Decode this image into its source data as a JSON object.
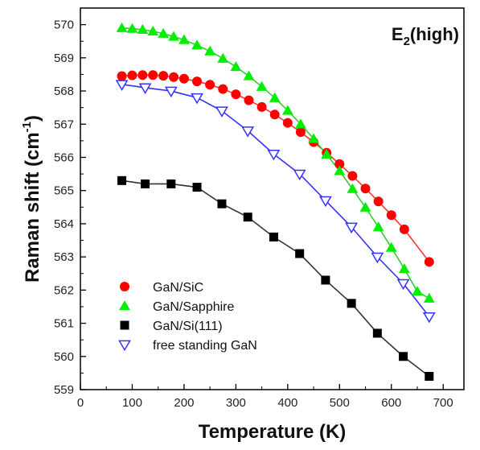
{
  "chart_data": {
    "type": "scatter",
    "xlabel": "Temperature (K)",
    "ylabel_main": "Raman shift (cm",
    "ylabel_sup": "-1",
    "ylabel_close": ")",
    "xlim": [
      0,
      740
    ],
    "ylim": [
      559,
      570.5
    ],
    "xticks": [
      0,
      100,
      200,
      300,
      400,
      500,
      600,
      700
    ],
    "yticks": [
      559,
      560,
      561,
      562,
      563,
      564,
      565,
      566,
      567,
      568,
      569,
      570
    ],
    "annotation_main": "E",
    "annotation_sub": "2",
    "annotation_rest": "(high)",
    "legend_position": "lower-left",
    "grid": false,
    "series": [
      {
        "name": "GaN/SiC",
        "marker": "circle",
        "color": "#ff0000",
        "line_color": "#ff3333",
        "x": [
          80,
          100,
          120,
          140,
          160,
          180,
          200,
          225,
          250,
          275,
          300,
          325,
          350,
          375,
          400,
          425,
          450,
          475,
          500,
          525,
          550,
          575,
          600,
          625,
          673
        ],
        "y": [
          568.45,
          568.47,
          568.48,
          568.48,
          568.46,
          568.42,
          568.37,
          568.29,
          568.19,
          568.06,
          567.9,
          567.72,
          567.52,
          567.29,
          567.04,
          566.76,
          566.46,
          566.14,
          565.8,
          565.44,
          565.06,
          564.67,
          564.26,
          563.83,
          562.85
        ]
      },
      {
        "name": "GaN/Sapphire",
        "marker": "triangle-up",
        "color": "#00ee00",
        "line_color": "#33cc33",
        "x": [
          80,
          100,
          120,
          140,
          160,
          180,
          200,
          225,
          250,
          275,
          300,
          325,
          350,
          375,
          400,
          425,
          450,
          475,
          500,
          525,
          550,
          575,
          600,
          625,
          650,
          673
        ],
        "y": [
          569.9,
          569.88,
          569.85,
          569.8,
          569.73,
          569.64,
          569.54,
          569.38,
          569.2,
          568.98,
          568.73,
          568.45,
          568.13,
          567.79,
          567.41,
          567.0,
          566.56,
          566.09,
          565.59,
          565.05,
          564.49,
          563.9,
          563.28,
          562.64,
          561.96,
          561.75
        ]
      },
      {
        "name": "GaN/Si(111)",
        "marker": "square",
        "color": "#000000",
        "line_color": "#333333",
        "x": [
          80,
          125,
          175,
          225,
          273,
          323,
          373,
          423,
          473,
          523,
          573,
          623,
          673
        ],
        "y": [
          565.3,
          565.2,
          565.2,
          565.1,
          564.6,
          564.2,
          563.6,
          563.1,
          562.3,
          561.6,
          560.7,
          560.0,
          559.4
        ]
      },
      {
        "name": "free standing GaN",
        "marker": "triangle-down-open",
        "color": "#3333ff",
        "line_color": "#3333ff",
        "x": [
          80,
          125,
          175,
          225,
          273,
          323,
          373,
          423,
          473,
          523,
          573,
          623,
          673
        ],
        "y": [
          568.2,
          568.1,
          568.0,
          567.8,
          567.4,
          566.8,
          566.1,
          565.5,
          564.7,
          563.9,
          563.0,
          562.2,
          561.2
        ]
      }
    ]
  }
}
